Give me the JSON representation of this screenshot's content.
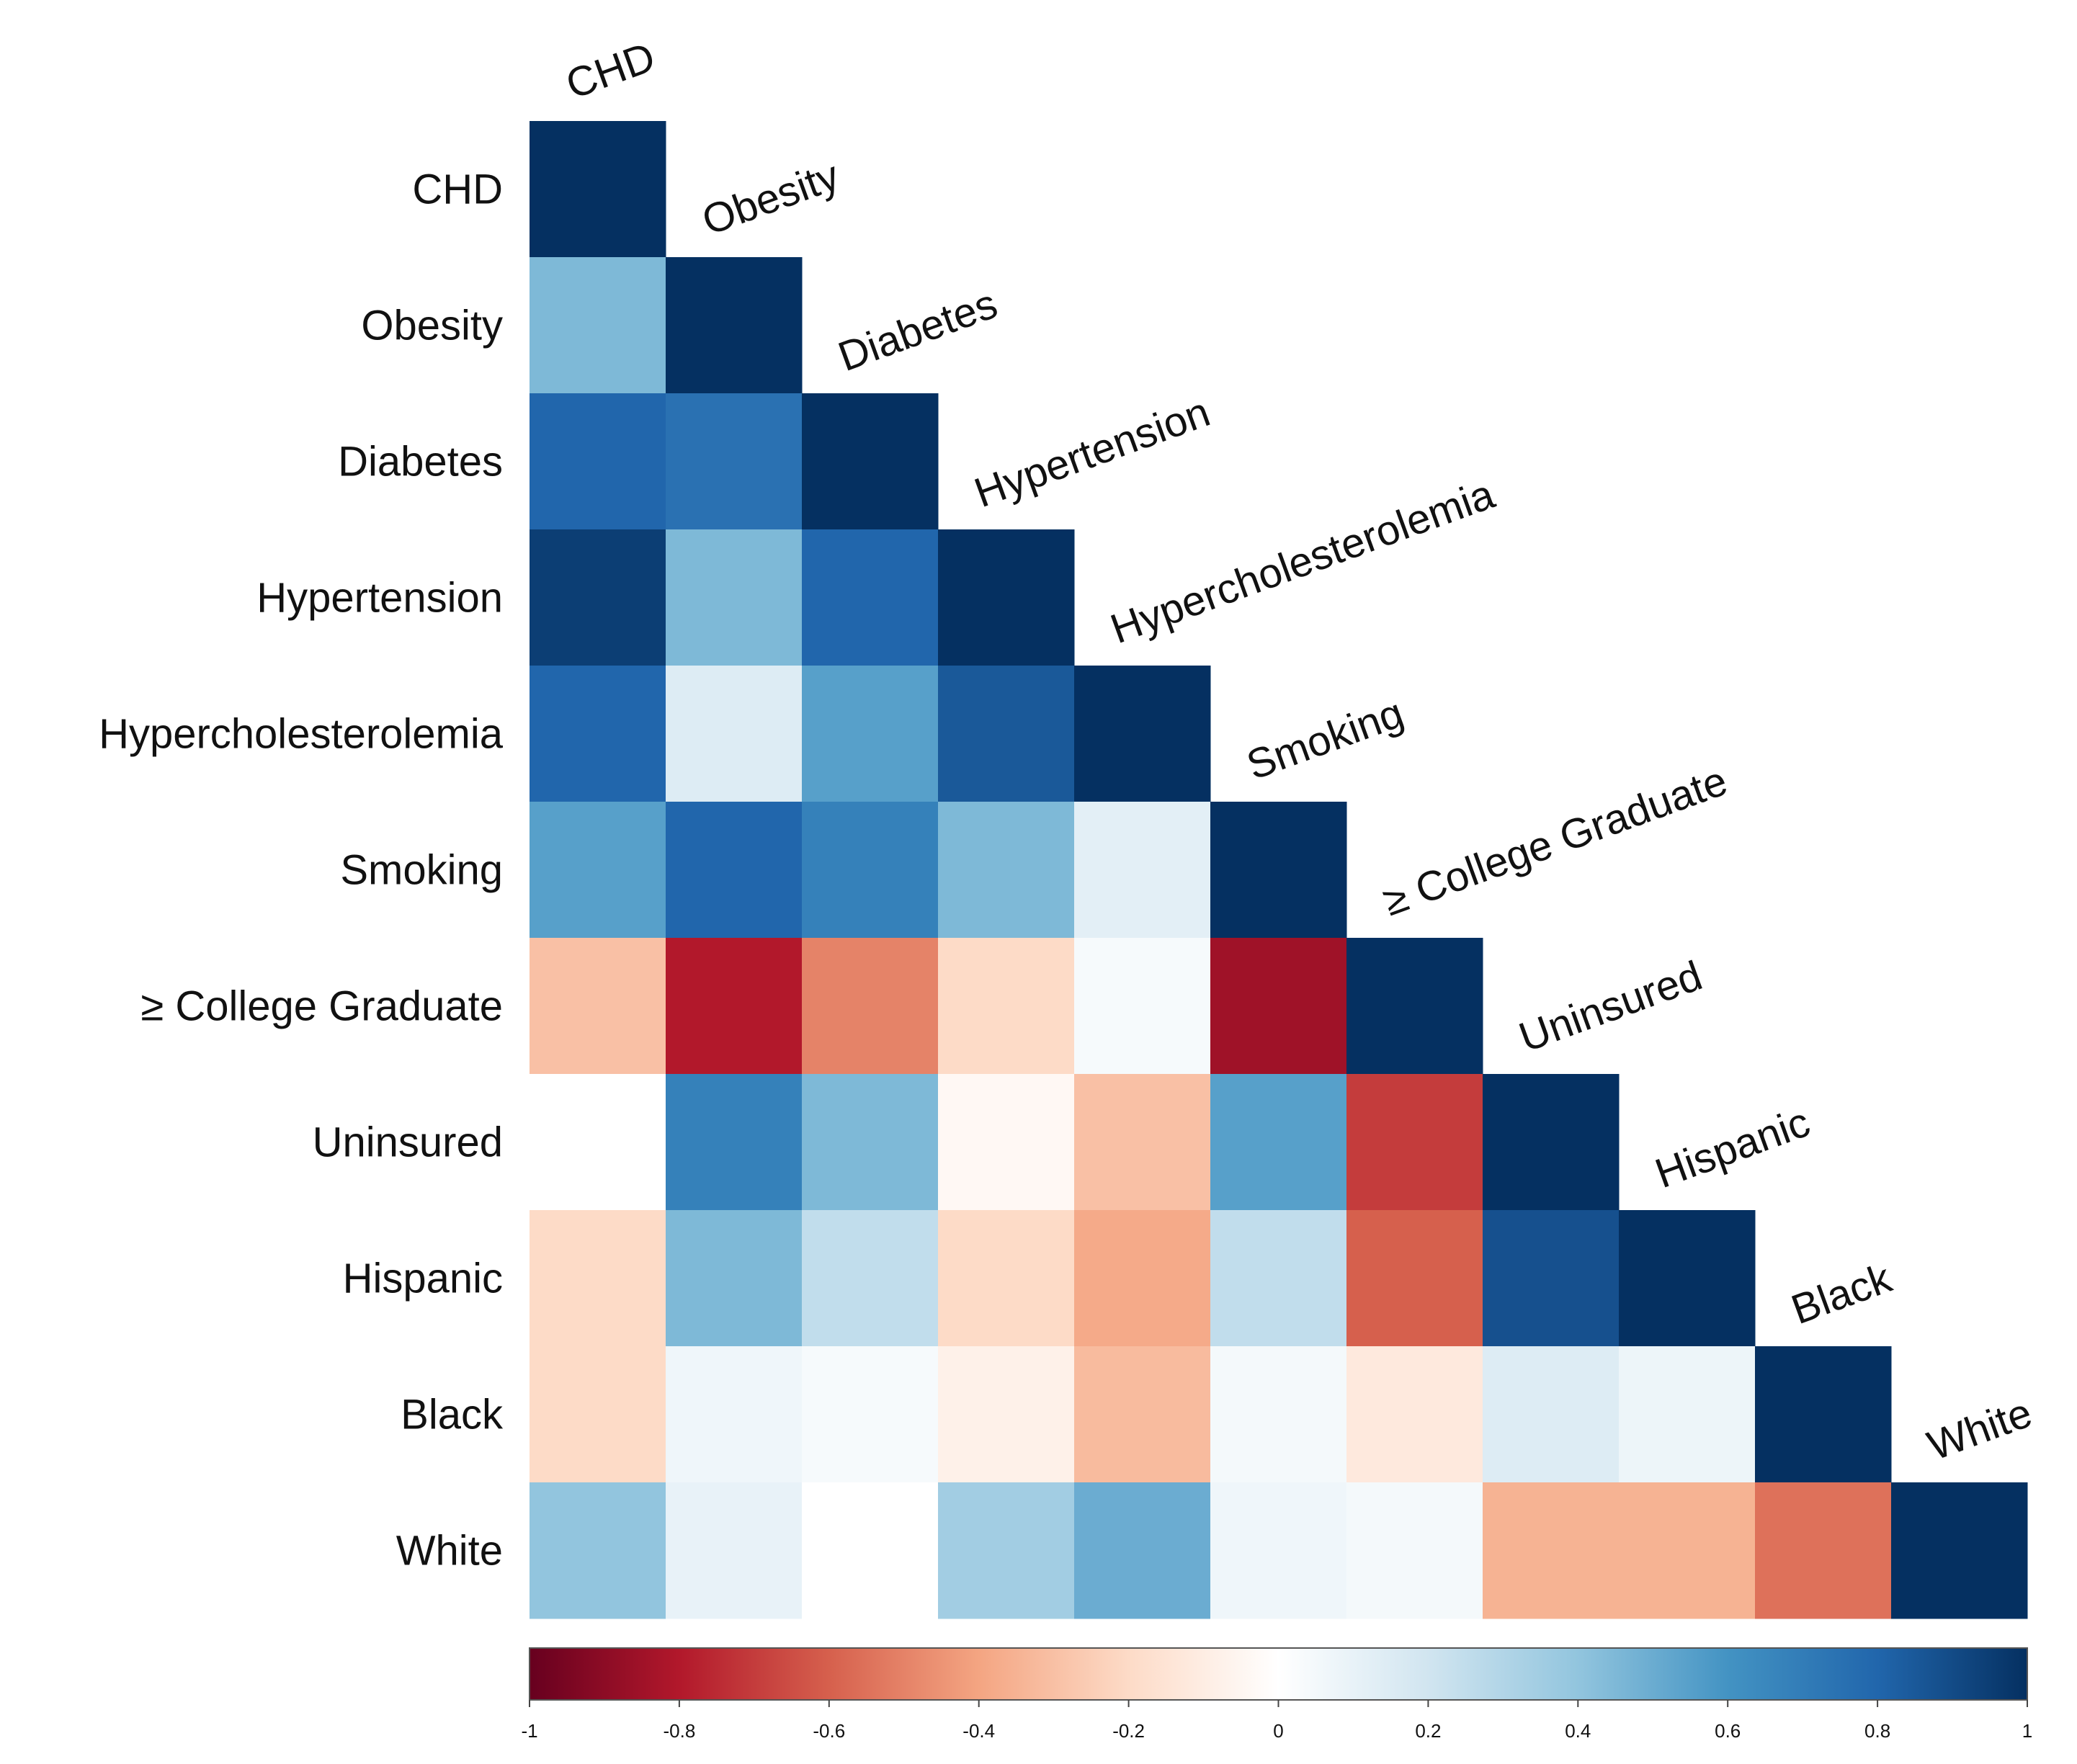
{
  "chart_data": {
    "type": "heatmap",
    "subtype": "lower-triangular correlation matrix",
    "variables": [
      "CHD",
      "Obesity",
      "Diabetes",
      "Hypertension",
      "Hypercholesterolemia",
      "Smoking",
      "≥  College Graduate",
      "Uninsured",
      "Hispanic",
      "Black",
      "White"
    ],
    "matrix": [
      [
        1.0
      ],
      [
        0.45,
        1.0
      ],
      [
        0.8,
        0.75,
        1.0
      ],
      [
        0.95,
        0.45,
        0.8,
        1.0
      ],
      [
        0.8,
        0.15,
        0.55,
        0.85,
        1.0
      ],
      [
        0.55,
        0.8,
        0.68,
        0.45,
        0.12,
        1.0
      ],
      [
        -0.3,
        -0.8,
        -0.5,
        -0.2,
        0.04,
        -0.85,
        1.0
      ],
      [
        0.0,
        0.68,
        0.45,
        -0.04,
        -0.3,
        0.55,
        -0.7,
        1.0
      ],
      [
        -0.2,
        0.45,
        0.25,
        -0.2,
        -0.38,
        0.25,
        -0.6,
        0.88,
        1.0
      ],
      [
        -0.2,
        0.07,
        0.04,
        -0.08,
        -0.32,
        0.05,
        -0.12,
        0.15,
        0.08,
        1.0
      ],
      [
        0.4,
        0.1,
        0.0,
        0.35,
        0.5,
        0.07,
        0.05,
        -0.35,
        -0.35,
        -0.55,
        1.0
      ]
    ],
    "colorbar": {
      "range": [
        -1,
        1
      ],
      "ticks": [
        "-1",
        "-0.8",
        "-0.6",
        "-0.4",
        "-0.2",
        "0",
        "0.2",
        "0.4",
        "0.6",
        "0.8",
        "1"
      ]
    },
    "colors": {
      "negative_end": "#67001f",
      "mid_negative": "#d6604d",
      "light_negative": "#fddbc7",
      "zero": "#f7f7f7",
      "light_positive": "#d1e5f0",
      "mid_positive": "#4393c3",
      "positive_end": "#053061"
    }
  }
}
